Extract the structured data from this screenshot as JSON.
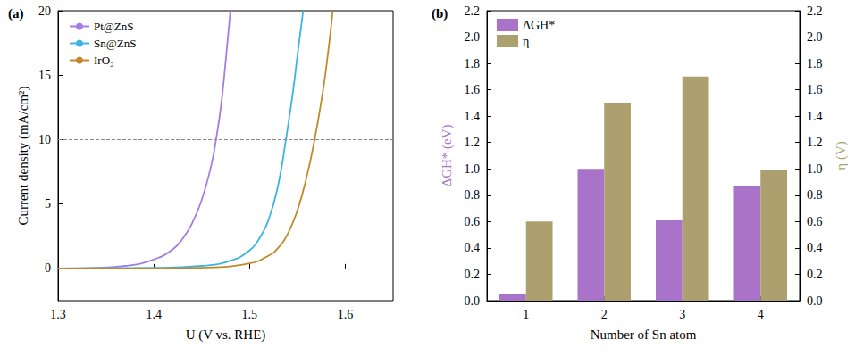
{
  "chart_data": [
    {
      "type": "line",
      "title": "(a)",
      "x_label": "U (V vs. RHE)",
      "y_label": "Current density (mA/cm²)",
      "xlim": [
        1.3,
        1.65
      ],
      "xticks": [
        1.3,
        1.4,
        1.5,
        1.6
      ],
      "ylim": [
        -2.5,
        20
      ],
      "yticks": [
        0,
        5,
        10,
        15,
        20
      ],
      "grid": false,
      "legend": "upper left",
      "marker": "none",
      "reference_line": {
        "y": 10,
        "line_style": "dashed"
      },
      "series": [
        {
          "name": "Pt@ZnS",
          "color": "#a57de0",
          "x": [
            1.3,
            1.34,
            1.37,
            1.4,
            1.42,
            1.43,
            1.44,
            1.45,
            1.46,
            1.465,
            1.47,
            1.475,
            1.48
          ],
          "values": [
            0,
            0.05,
            0.2,
            0.7,
            1.5,
            2.3,
            3.5,
            5.3,
            8.0,
            10,
            12.5,
            16,
            20
          ]
        },
        {
          "name": "Sn@ZnS",
          "color": "#3cb4e0",
          "x": [
            1.3,
            1.4,
            1.45,
            1.48,
            1.5,
            1.51,
            1.52,
            1.53,
            1.538,
            1.545,
            1.55,
            1.556
          ],
          "values": [
            0,
            0.05,
            0.2,
            0.6,
            1.4,
            2.3,
            3.8,
            6.5,
            10,
            13.5,
            16.5,
            20
          ]
        },
        {
          "name": "IrO₂",
          "color": "#c08a2a",
          "x": [
            1.3,
            1.4,
            1.45,
            1.5,
            1.52,
            1.53,
            1.54,
            1.55,
            1.56,
            1.568,
            1.575,
            1.58,
            1.587
          ],
          "values": [
            0,
            0,
            0.05,
            0.4,
            1.0,
            1.6,
            2.7,
            4.5,
            7.2,
            10,
            13,
            15.5,
            20
          ]
        }
      ]
    },
    {
      "type": "bar",
      "title": "(b)",
      "x_label": "Number of Sn atom",
      "y_label": "ΔGH* (eV)",
      "y2_label": "η (V)",
      "categories": [
        "1",
        "2",
        "3",
        "4"
      ],
      "ylim": [
        0,
        2.2
      ],
      "yticks": [
        {
          "value": 0,
          "label": "0.0"
        },
        {
          "value": 0.2,
          "label": "0.2"
        },
        {
          "value": 0.4,
          "label": "0.4"
        },
        {
          "value": 0.6,
          "label": "0.6"
        },
        {
          "value": 0.8,
          "label": "0.8"
        },
        {
          "value": 1,
          "label": "1.0"
        },
        {
          "value": 1.2,
          "label": "1.2"
        },
        {
          "value": 1.4,
          "label": "1.4"
        },
        {
          "value": 1.6,
          "label": "1.6"
        },
        {
          "value": 1.8,
          "label": "1.8"
        },
        {
          "value": 2,
          "label": "2.0"
        },
        {
          "value": 2.2,
          "label": "2.2"
        }
      ],
      "y2lim": [
        0,
        2.2
      ],
      "y2ticks": [
        {
          "value": 0,
          "label": "0.0"
        },
        {
          "value": 0.2,
          "label": "0.2"
        },
        {
          "value": 0.4,
          "label": "0.4"
        },
        {
          "value": 0.6,
          "label": "0.6"
        },
        {
          "value": 0.8,
          "label": "0.8"
        },
        {
          "value": 1,
          "label": "1.0"
        },
        {
          "value": 1.2,
          "label": "1.2"
        },
        {
          "value": 1.4,
          "label": "1.4"
        },
        {
          "value": 1.6,
          "label": "1.6"
        },
        {
          "value": 1.8,
          "label": "1.8"
        },
        {
          "value": 2,
          "label": "2.0"
        },
        {
          "value": 2.2,
          "label": "2.2"
        }
      ],
      "grid": false,
      "legend": "upper left",
      "series": [
        {
          "name": "ΔGH*",
          "color": "#a873c8",
          "values": [
            0.05,
            1.0,
            0.61,
            0.87
          ]
        },
        {
          "name": "η",
          "color": "#aba06e",
          "axis": "y2",
          "values": [
            0.6,
            1.5,
            1.7,
            0.99
          ]
        }
      ]
    }
  ]
}
